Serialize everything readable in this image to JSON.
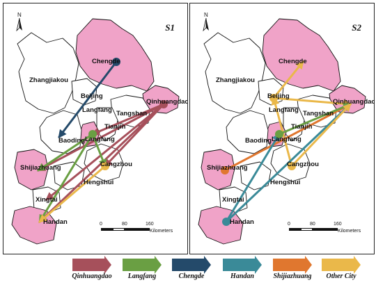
{
  "colors": {
    "Qinhuangdao": "#a6505b",
    "Langfang": "#6a9f43",
    "Chengde": "#244a6a",
    "Handan": "#3a8a98",
    "Shijiazhuang": "#e0772f",
    "Other City": "#eab84a",
    "highlight": "#f0a3c8",
    "border": "#111111"
  },
  "panels": [
    {
      "id": "S1",
      "title": "S1",
      "north": "N",
      "cities": {
        "chengde": "Chengde",
        "zhangjiakou": "Zhangjiakou",
        "beijing": "Beijing",
        "langfang": "Langfang",
        "tangshan": "Tangshan",
        "qinhuangdao": "Qinhuangdao",
        "tianjin": "Tianjin",
        "baoding": "Baoding",
        "langfang_inner": "Langfang",
        "shijiazhuang": "Shijiazhuang",
        "cangzhou": "Cangzhou",
        "hengshui": "Hengshui",
        "xingtai": "Xingtai",
        "handan": "Handan"
      },
      "highlighted": [
        "Chengde",
        "Qinhuangdao",
        "Langfang",
        "Shijiazhuang",
        "Handan"
      ],
      "scale": {
        "t0": "0",
        "t1": "80",
        "t2": "160",
        "unit": "Kilometers"
      }
    },
    {
      "id": "S2",
      "title": "S2",
      "north": "N",
      "cities": {
        "chengde": "Chengde",
        "zhangjiakou": "Zhangjiakou",
        "beijing": "Beijing",
        "langfang": "Langfang",
        "tangshan": "Tangshan",
        "qinhuangdao": "Qinhuangdao",
        "tianjin": "Tianjin",
        "baoding": "Baoding",
        "langfang_inner": "Langfang",
        "shijiazhuang": "Shijiazhuang",
        "cangzhou": "Cangzhou",
        "hengshui": "Hengshui",
        "xingtai": "Xingtai",
        "handan": "Handan"
      },
      "highlighted": [
        "Chengde",
        "Qinhuangdao",
        "Langfang",
        "Shijiazhuang",
        "Handan"
      ],
      "scale": {
        "t0": "0",
        "t1": "80",
        "t2": "160",
        "unit": "Kilometers"
      }
    }
  ],
  "legend": [
    {
      "label": "Qinhuangdao",
      "color_key": "Qinhuangdao"
    },
    {
      "label": "Langfang",
      "color_key": "Langfang"
    },
    {
      "label": "Chengde",
      "color_key": "Chengde"
    },
    {
      "label": "Handan",
      "color_key": "Handan"
    },
    {
      "label": "Shijiazhuang",
      "color_key": "Shijiazhuang"
    },
    {
      "label": "Other City",
      "color_key": "Other City"
    }
  ],
  "flows": {
    "S1": [
      {
        "from": "Chengde",
        "to": "Baoding",
        "origin": "Chengde"
      },
      {
        "from": "Qinhuangdao",
        "to": "Langfang",
        "origin": "Qinhuangdao"
      },
      {
        "from": "Qinhuangdao",
        "to": "Cangzhou",
        "origin": "Qinhuangdao"
      },
      {
        "from": "Qinhuangdao",
        "to": "Shijiazhuang",
        "origin": "Qinhuangdao"
      },
      {
        "from": "Qinhuangdao",
        "to": "Xingtai",
        "origin": "Qinhuangdao"
      },
      {
        "from": "Qinhuangdao",
        "to": "Handan",
        "origin": "Qinhuangdao"
      },
      {
        "from": "Langfang",
        "to": "Shijiazhuang",
        "origin": "Langfang"
      },
      {
        "from": "Langfang",
        "to": "Handan",
        "origin": "Langfang"
      },
      {
        "from": "Langfang",
        "to": "Cangzhou",
        "origin": "Langfang"
      },
      {
        "from": "Cangzhou",
        "to": "Handan",
        "origin": "Other City"
      }
    ],
    "S2": [
      {
        "from": "Beijing",
        "to": "Chengde",
        "origin": "Other City"
      },
      {
        "from": "Cangzhou",
        "to": "Beijing",
        "origin": "Other City"
      },
      {
        "from": "Beijing",
        "to": "Qinhuangdao",
        "origin": "Other City"
      },
      {
        "from": "Shijiazhuang",
        "to": "Qinhuangdao",
        "origin": "Shijiazhuang"
      },
      {
        "from": "Langfang",
        "to": "Qinhuangdao",
        "origin": "Langfang"
      },
      {
        "from": "Handan",
        "to": "Qinhuangdao",
        "origin": "Handan"
      },
      {
        "from": "Handan",
        "to": "Langfang",
        "origin": "Handan"
      },
      {
        "from": "Cangzhou",
        "to": "Qinhuangdao",
        "origin": "Other City"
      }
    ]
  }
}
